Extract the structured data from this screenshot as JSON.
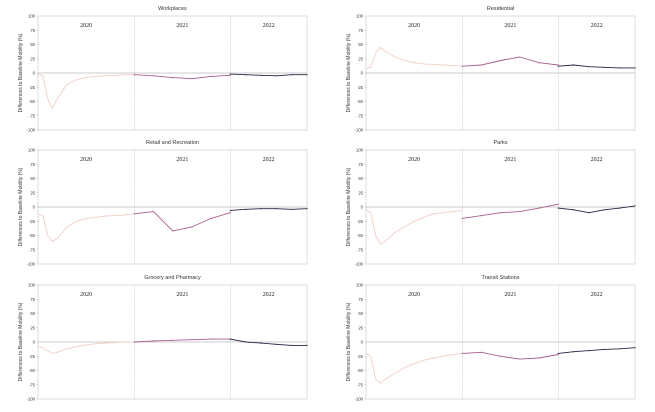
{
  "chart_data": [
    {
      "type": "line",
      "title": "Workplaces",
      "ylabel": "Differences to Baseline Mobility (%)",
      "ylim": [
        -100,
        100
      ],
      "yticks": [
        100,
        75,
        50,
        25,
        0,
        -25,
        -50,
        -75,
        -100
      ],
      "period_labels": [
        "2020",
        "2021",
        "2022"
      ],
      "series": [
        {
          "color": "#f2cfc7",
          "x": [
            0,
            0.05,
            0.1,
            0.15,
            0.2,
            0.3,
            0.4,
            0.5,
            0.6,
            0.7,
            0.8,
            0.9,
            1.0
          ],
          "y": [
            -2,
            -5,
            -45,
            -62,
            -45,
            -20,
            -12,
            -8,
            -6,
            -5,
            -4,
            -3,
            -3
          ]
        },
        {
          "color": "#a65f8c",
          "x": [
            1.0,
            1.2,
            1.4,
            1.6,
            1.8,
            2.0
          ],
          "y": [
            -3,
            -5,
            -8,
            -10,
            -6,
            -4
          ]
        },
        {
          "color": "#2b2342",
          "x": [
            2.0,
            2.2,
            2.4,
            2.6,
            2.8,
            3.0
          ],
          "y": [
            -2,
            -3,
            -4,
            -5,
            -3,
            -3
          ]
        }
      ]
    },
    {
      "type": "line",
      "title": "Residential",
      "ylabel": "Differences to Baseline Mobility (%)",
      "ylim": [
        -100,
        100
      ],
      "yticks": [
        100,
        75,
        50,
        25,
        0,
        -25,
        -50,
        -75,
        -100
      ],
      "period_labels": [
        "2020",
        "2021",
        "2022"
      ],
      "series": [
        {
          "color": "#f2cfc7",
          "x": [
            0,
            0.05,
            0.1,
            0.15,
            0.2,
            0.3,
            0.4,
            0.5,
            0.6,
            0.7,
            0.8,
            0.9,
            1.0
          ],
          "y": [
            8,
            10,
            35,
            45,
            38,
            28,
            22,
            18,
            16,
            15,
            14,
            13,
            12
          ]
        },
        {
          "color": "#a65f8c",
          "x": [
            1.0,
            1.2,
            1.4,
            1.6,
            1.8,
            2.0
          ],
          "y": [
            12,
            14,
            22,
            28,
            18,
            14
          ]
        },
        {
          "color": "#2b2342",
          "x": [
            2.0,
            2.2,
            2.4,
            2.6,
            2.8,
            3.0
          ],
          "y": [
            12,
            14,
            11,
            10,
            9,
            9
          ]
        }
      ]
    },
    {
      "type": "line",
      "title": "Retail and Recreation",
      "ylabel": "Differences to Baseline Mobility (%)",
      "ylim": [
        -100,
        100
      ],
      "yticks": [
        100,
        75,
        50,
        25,
        0,
        -25,
        -50,
        -75,
        -100
      ],
      "period_labels": [
        "2020",
        "2021",
        "2022"
      ],
      "series": [
        {
          "color": "#f2cfc7",
          "x": [
            0,
            0.05,
            0.1,
            0.15,
            0.2,
            0.3,
            0.4,
            0.5,
            0.6,
            0.7,
            0.8,
            0.9,
            1.0
          ],
          "y": [
            -12,
            -15,
            -50,
            -60,
            -55,
            -35,
            -25,
            -20,
            -18,
            -16,
            -15,
            -14,
            -12
          ]
        },
        {
          "color": "#a65f8c",
          "x": [
            1.0,
            1.2,
            1.4,
            1.6,
            1.8,
            2.0
          ],
          "y": [
            -12,
            -8,
            -42,
            -35,
            -20,
            -10
          ]
        },
        {
          "color": "#2b2342",
          "x": [
            2.0,
            2.2,
            2.4,
            2.6,
            2.8,
            3.0
          ],
          "y": [
            -6,
            -4,
            -3,
            -3,
            -4,
            -3
          ]
        }
      ]
    },
    {
      "type": "line",
      "title": "Parks",
      "ylabel": "Differences to Baseline Mobility (%)",
      "ylim": [
        -100,
        100
      ],
      "yticks": [
        100,
        75,
        50,
        25,
        0,
        -25,
        -50,
        -75,
        -100
      ],
      "period_labels": [
        "2020",
        "2021",
        "2022"
      ],
      "series": [
        {
          "color": "#f2cfc7",
          "x": [
            0,
            0.05,
            0.1,
            0.15,
            0.2,
            0.3,
            0.4,
            0.5,
            0.6,
            0.7,
            0.8,
            0.9,
            1.0
          ],
          "y": [
            -5,
            -10,
            -50,
            -65,
            -60,
            -45,
            -35,
            -25,
            -18,
            -12,
            -10,
            -8,
            -6
          ]
        },
        {
          "color": "#a65f8c",
          "x": [
            1.0,
            1.2,
            1.4,
            1.6,
            1.8,
            2.0
          ],
          "y": [
            -20,
            -15,
            -10,
            -8,
            -2,
            5
          ]
        },
        {
          "color": "#2b2342",
          "x": [
            2.0,
            2.2,
            2.4,
            2.6,
            2.8,
            3.0
          ],
          "y": [
            -2,
            -5,
            -10,
            -5,
            -2,
            2
          ]
        }
      ]
    },
    {
      "type": "line",
      "title": "Grocery and Pharmacy",
      "ylabel": "Differences to Baseline Mobility (%)",
      "ylim": [
        -100,
        100
      ],
      "yticks": [
        100,
        75,
        50,
        25,
        0,
        -25,
        -50,
        -75,
        -100
      ],
      "period_labels": [
        "2020",
        "2021",
        "2022"
      ],
      "series": [
        {
          "color": "#f2cfc7",
          "x": [
            0,
            0.05,
            0.1,
            0.15,
            0.2,
            0.3,
            0.4,
            0.5,
            0.6,
            0.7,
            0.8,
            0.9,
            1.0
          ],
          "y": [
            -8,
            -10,
            -15,
            -20,
            -18,
            -12,
            -8,
            -5,
            -3,
            -2,
            -1,
            0,
            0
          ]
        },
        {
          "color": "#a65f8c",
          "x": [
            1.0,
            1.2,
            1.4,
            1.6,
            1.8,
            2.0
          ],
          "y": [
            0,
            2,
            3,
            4,
            5,
            5
          ]
        },
        {
          "color": "#2b2342",
          "x": [
            2.0,
            2.2,
            2.4,
            2.6,
            2.8,
            3.0
          ],
          "y": [
            5,
            0,
            -2,
            -4,
            -6,
            -6
          ]
        }
      ]
    },
    {
      "type": "line",
      "title": "Transit Stations",
      "ylabel": "Differences to Baseline Mobility (%)",
      "ylim": [
        -100,
        100
      ],
      "yticks": [
        100,
        75,
        50,
        25,
        0,
        -25,
        -50,
        -75,
        -100
      ],
      "period_labels": [
        "2020",
        "2021",
        "2022"
      ],
      "series": [
        {
          "color": "#f2cfc7",
          "x": [
            0,
            0.05,
            0.1,
            0.15,
            0.2,
            0.3,
            0.4,
            0.5,
            0.6,
            0.7,
            0.8,
            0.9,
            1.0
          ],
          "y": [
            -20,
            -25,
            -65,
            -72,
            -65,
            -55,
            -45,
            -38,
            -32,
            -28,
            -25,
            -22,
            -20
          ]
        },
        {
          "color": "#a65f8c",
          "x": [
            1.0,
            1.2,
            1.4,
            1.6,
            1.8,
            2.0
          ],
          "y": [
            -20,
            -18,
            -25,
            -30,
            -28,
            -22
          ]
        },
        {
          "color": "#2b2342",
          "x": [
            2.0,
            2.2,
            2.4,
            2.6,
            2.8,
            3.0
          ],
          "y": [
            -20,
            -17,
            -15,
            -13,
            -12,
            -10
          ]
        }
      ]
    }
  ]
}
